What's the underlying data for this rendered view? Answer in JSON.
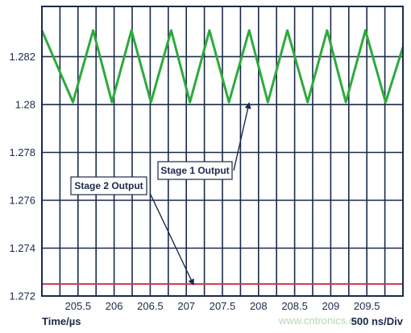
{
  "chart_data": {
    "type": "line",
    "xlabel": "Time/µs",
    "x_scale_label": "500 ns/Div",
    "watermark": "www.cntronics.com",
    "xlim": [
      205.0,
      210.0
    ],
    "ylim": [
      1.272,
      1.2841
    ],
    "x_tick_labels": [
      "205.5",
      "206",
      "206.5",
      "207",
      "207.5",
      "208",
      "208.5",
      "209",
      "209.5"
    ],
    "x_ticks": [
      205.5,
      206,
      206.5,
      207,
      207.5,
      208,
      208.5,
      209,
      209.5
    ],
    "x_minor_step": 0.25,
    "y_tick_labels": [
      "1.272",
      "1.274",
      "1.276",
      "1.278",
      "1.28",
      "1.282"
    ],
    "y_ticks": [
      1.272,
      1.274,
      1.276,
      1.278,
      1.28,
      1.282
    ],
    "grid": true,
    "series": [
      {
        "name": "Stage 1 Output",
        "color": "#2eaa3c",
        "x": [
          205.0,
          205.43,
          205.71,
          205.97,
          206.24,
          206.51,
          206.79,
          207.05,
          207.32,
          207.59,
          207.87,
          208.13,
          208.4,
          208.68,
          208.95,
          209.21,
          209.48,
          209.76,
          210.0
        ],
        "y": [
          1.2831,
          1.2801,
          1.2831,
          1.2801,
          1.2831,
          1.2801,
          1.2831,
          1.2801,
          1.2831,
          1.2801,
          1.2831,
          1.2801,
          1.2831,
          1.2801,
          1.2831,
          1.2801,
          1.2831,
          1.2801,
          1.2824
        ]
      },
      {
        "name": "Stage 2 Output",
        "color": "#d2334a",
        "x": [
          205.0,
          210.0
        ],
        "y": [
          1.2725,
          1.2725
        ]
      }
    ],
    "annotations": [
      {
        "text": "Stage 1 Output",
        "series": "Stage 1 Output",
        "target_x": 207.87,
        "target_y": 1.2801
      },
      {
        "text": "Stage 2 Output",
        "series": "Stage 2 Output",
        "target_x": 207.1,
        "target_y": 1.2725
      }
    ]
  }
}
